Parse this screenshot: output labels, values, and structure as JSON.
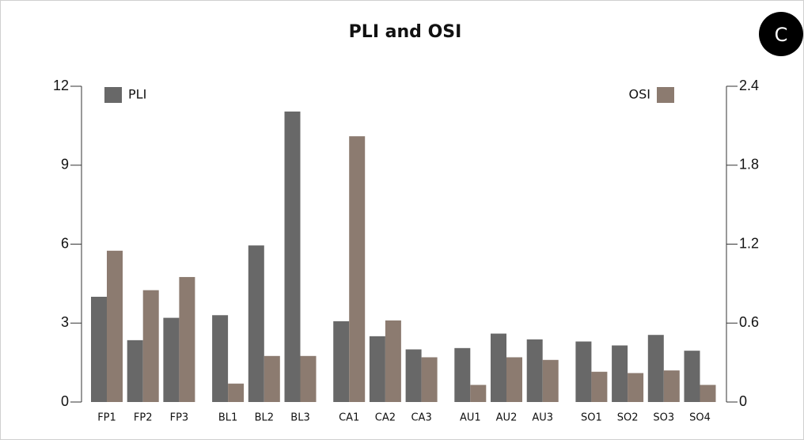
{
  "chart_data": {
    "type": "bar",
    "title": "PLI and OSI",
    "panel_label": "C",
    "categories": [
      "FP1",
      "FP2",
      "FP3",
      "BL1",
      "BL2",
      "BL3",
      "CA1",
      "CA2",
      "CA3",
      "AU1",
      "AU2",
      "AU3",
      "SO1",
      "SO2",
      "SO3",
      "SO4"
    ],
    "series": [
      {
        "name": "PLI",
        "color": "#686868",
        "values": [
          4.0,
          2.35,
          3.2,
          3.3,
          5.95,
          11.04,
          3.07,
          2.5,
          2.0,
          2.05,
          2.6,
          2.38,
          2.3,
          2.15,
          2.55,
          1.95
        ]
      },
      {
        "name": "OSI",
        "color": "#8c7b70",
        "axis": "y2",
        "values": [
          1.15,
          0.85,
          0.95,
          0.14,
          0.35,
          0.35,
          2.02,
          0.62,
          0.34,
          0.13,
          0.34,
          0.32,
          0.23,
          0.22,
          0.24,
          0.13
        ]
      }
    ],
    "ylim": [
      0,
      12
    ],
    "yticks": [
      0,
      3,
      6,
      9,
      12
    ],
    "y2lim": [
      0,
      2.4
    ],
    "y2ticks": [
      0,
      0.6,
      1.2,
      1.8,
      2.4
    ]
  }
}
